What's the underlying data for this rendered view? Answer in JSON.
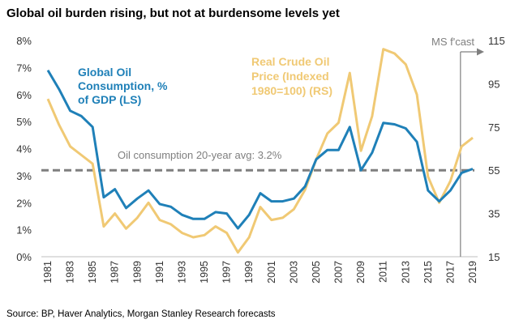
{
  "title": "Global oil burden rising, but not at burdensome levels yet",
  "source": "Source: BP, Haver Analytics, Morgan Stanley Research forecasts",
  "chart_data": {
    "type": "line",
    "x": [
      1981,
      1982,
      1983,
      1984,
      1985,
      1986,
      1987,
      1988,
      1989,
      1990,
      1991,
      1992,
      1993,
      1994,
      1995,
      1996,
      1997,
      1998,
      1999,
      2000,
      2001,
      2002,
      2003,
      2004,
      2005,
      2006,
      2007,
      2008,
      2009,
      2010,
      2011,
      2012,
      2013,
      2014,
      2015,
      2016,
      2017,
      2018,
      2019
    ],
    "x_tick_labels": [
      "1981",
      "1983",
      "1985",
      "1987",
      "1989",
      "1991",
      "1993",
      "1995",
      "1997",
      "1999",
      "2001",
      "2003",
      "2005",
      "2007",
      "2009",
      "2011",
      "2013",
      "2015",
      "2017",
      "2019"
    ],
    "left_axis": {
      "min": 0,
      "max": 8,
      "ticks": [
        "0%",
        "1%",
        "2%",
        "3%",
        "4%",
        "5%",
        "6%",
        "7%",
        "8%"
      ]
    },
    "right_axis": {
      "min": 15,
      "max": 115,
      "ticks": [
        "15",
        "35",
        "55",
        "75",
        "95",
        "115"
      ]
    },
    "series": [
      {
        "name": "Global Oil Consumption, % of GDP (LS)",
        "label_lines": [
          "Global Oil",
          "Consumption, %",
          "of GDP (LS)"
        ],
        "axis": "left",
        "color": "#1f80b8",
        "values": [
          6.9,
          6.2,
          5.4,
          5.2,
          4.8,
          2.2,
          2.5,
          1.8,
          2.15,
          2.45,
          1.95,
          1.85,
          1.55,
          1.4,
          1.4,
          1.65,
          1.6,
          1.05,
          1.55,
          2.35,
          2.05,
          2.05,
          2.15,
          2.6,
          3.6,
          3.95,
          3.95,
          4.8,
          3.2,
          3.85,
          4.95,
          4.9,
          4.75,
          4.25,
          2.45,
          2.05,
          2.45,
          3.1,
          3.25
        ]
      },
      {
        "name": "Real Crude Oil Price (Indexed 1980=100) (RS)",
        "label_lines": [
          "Real Crude Oil",
          "Price (Indexed",
          "1980=100) (RS)"
        ],
        "axis": "right",
        "color": "#f0c974",
        "values": [
          88,
          76,
          66,
          62,
          58,
          29,
          35,
          28,
          33,
          40,
          32,
          30,
          26,
          24,
          25,
          29,
          26,
          17,
          24,
          38,
          32,
          33,
          37,
          46,
          60,
          72,
          77,
          100,
          64,
          80,
          111,
          109,
          104,
          90,
          52,
          40,
          50,
          66,
          70
        ]
      }
    ],
    "reference_line": {
      "value": 3.2,
      "axis": "left",
      "label": "Oil consumption 20-year avg: 3.2%",
      "color": "#7f7f7f",
      "style": "dashed"
    },
    "forecast_marker": {
      "x": 2017.9,
      "label": "MS f'cast"
    },
    "grid": false,
    "legend": "inline-labels"
  }
}
